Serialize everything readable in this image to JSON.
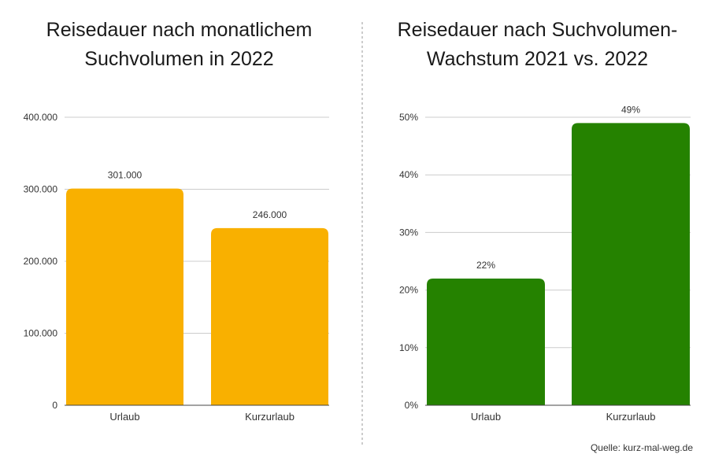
{
  "charts": [
    {
      "title": "Reisedauer nach monatlichem\nSuchvolumen in 2022",
      "type": "bar",
      "categories": [
        "Urlaub",
        "Kurzurlaub"
      ],
      "values": [
        301000,
        246000
      ],
      "value_labels": [
        "301.000",
        "246.000"
      ],
      "y_ticks": [
        0,
        100000,
        200000,
        300000,
        400000
      ],
      "y_tick_labels": [
        "0",
        "100.000",
        "200.000",
        "300.000",
        "400.000"
      ],
      "ylim": [
        0,
        400000
      ],
      "color": "#F9B000",
      "grid": true
    },
    {
      "title": "Reisedauer nach Suchvolumen-\nWachstum 2021 vs. 2022",
      "type": "bar",
      "categories": [
        "Urlaub",
        "Kurzurlaub"
      ],
      "values": [
        22,
        49
      ],
      "value_labels": [
        "22%",
        "49%"
      ],
      "y_ticks": [
        0,
        10,
        20,
        30,
        40,
        50
      ],
      "y_tick_labels": [
        "0%",
        "10%",
        "20%",
        "30%",
        "40%",
        "50%"
      ],
      "ylim": [
        0,
        50
      ],
      "color": "#258200",
      "grid": true
    }
  ],
  "source": "Quelle: kurz-mal-weg.de",
  "colors": {
    "grid": "#cccccc",
    "divider": "#9a9a9a",
    "axis": "#444444"
  }
}
